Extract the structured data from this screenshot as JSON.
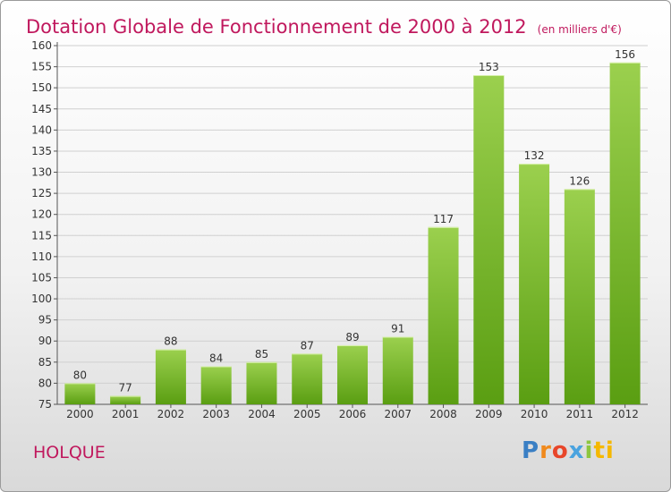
{
  "header": {
    "title": "Dotation Globale de Fonctionnement de 2000 à 2012",
    "unit_note": "(en milliers d'€)"
  },
  "footer": {
    "commune": "HOLQUE",
    "logo": [
      "P",
      "r",
      "o",
      "x",
      "i",
      "ti"
    ]
  },
  "colors": {
    "accent": "#c0185d",
    "bar_top": "#9bd04e",
    "bar_bottom": "#5a9e12",
    "grid": "#d0d0d0"
  },
  "chart_data": {
    "type": "bar",
    "categories": [
      "2000",
      "2001",
      "2002",
      "2003",
      "2004",
      "2005",
      "2006",
      "2007",
      "2008",
      "2009",
      "2010",
      "2011",
      "2012"
    ],
    "values": [
      80,
      77,
      88,
      84,
      85,
      87,
      89,
      91,
      117,
      153,
      132,
      126,
      156
    ],
    "ylim": [
      75,
      160
    ],
    "yticks": [
      75,
      80,
      85,
      90,
      95,
      100,
      105,
      110,
      115,
      120,
      125,
      130,
      135,
      140,
      145,
      150,
      155,
      160
    ],
    "grid": true
  }
}
